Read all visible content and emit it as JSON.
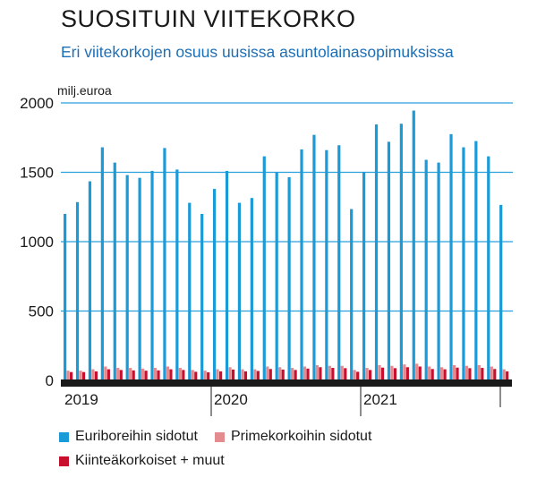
{
  "header": {
    "title": "SUOSITUIN VIITEKORKO",
    "subtitle": "Eri viitekorkojen osuus uusissa asuntolainasopimuksissa"
  },
  "colors": {
    "euribor": "#1a9ad6",
    "prime": "#e48b8f",
    "fixed": "#c8102e",
    "grid": "#2aa0dc",
    "axis": "#1a1a1a"
  },
  "chart_data": {
    "type": "bar",
    "ylabel": "milj.euroa",
    "ylim": [
      0,
      2000
    ],
    "yticks": [
      0,
      500,
      1000,
      1500,
      2000
    ],
    "grid": true,
    "year_labels": [
      "2019",
      "2020",
      "2021"
    ],
    "legend_position": "bottom-left",
    "series": [
      {
        "name": "Euriboreihin sidotut",
        "values": [
          1200,
          1285,
          1435,
          1680,
          1570,
          1480,
          1460,
          1510,
          1675,
          1520,
          1280,
          1200,
          1380,
          1510,
          1280,
          1315,
          1615,
          1500,
          1465,
          1665,
          1770,
          1660,
          1695,
          1235,
          1500,
          1845,
          1720,
          1850,
          1945,
          1590,
          1570,
          1775,
          1680,
          1725,
          1615,
          1265
        ]
      },
      {
        "name": "Primekorkoihin sidotut",
        "values": [
          70,
          70,
          80,
          100,
          90,
          90,
          85,
          90,
          100,
          90,
          75,
          70,
          80,
          95,
          80,
          80,
          100,
          95,
          90,
          100,
          110,
          105,
          105,
          75,
          90,
          110,
          105,
          115,
          120,
          100,
          95,
          110,
          105,
          110,
          100,
          80
        ]
      },
      {
        "name": "Kiinteäkorkoiset + muut",
        "values": [
          60,
          60,
          65,
          80,
          75,
          72,
          70,
          72,
          80,
          75,
          62,
          58,
          65,
          78,
          65,
          68,
          82,
          78,
          75,
          85,
          95,
          90,
          88,
          62,
          75,
          92,
          88,
          95,
          100,
          82,
          80,
          92,
          88,
          90,
          82,
          65
        ]
      }
    ]
  }
}
